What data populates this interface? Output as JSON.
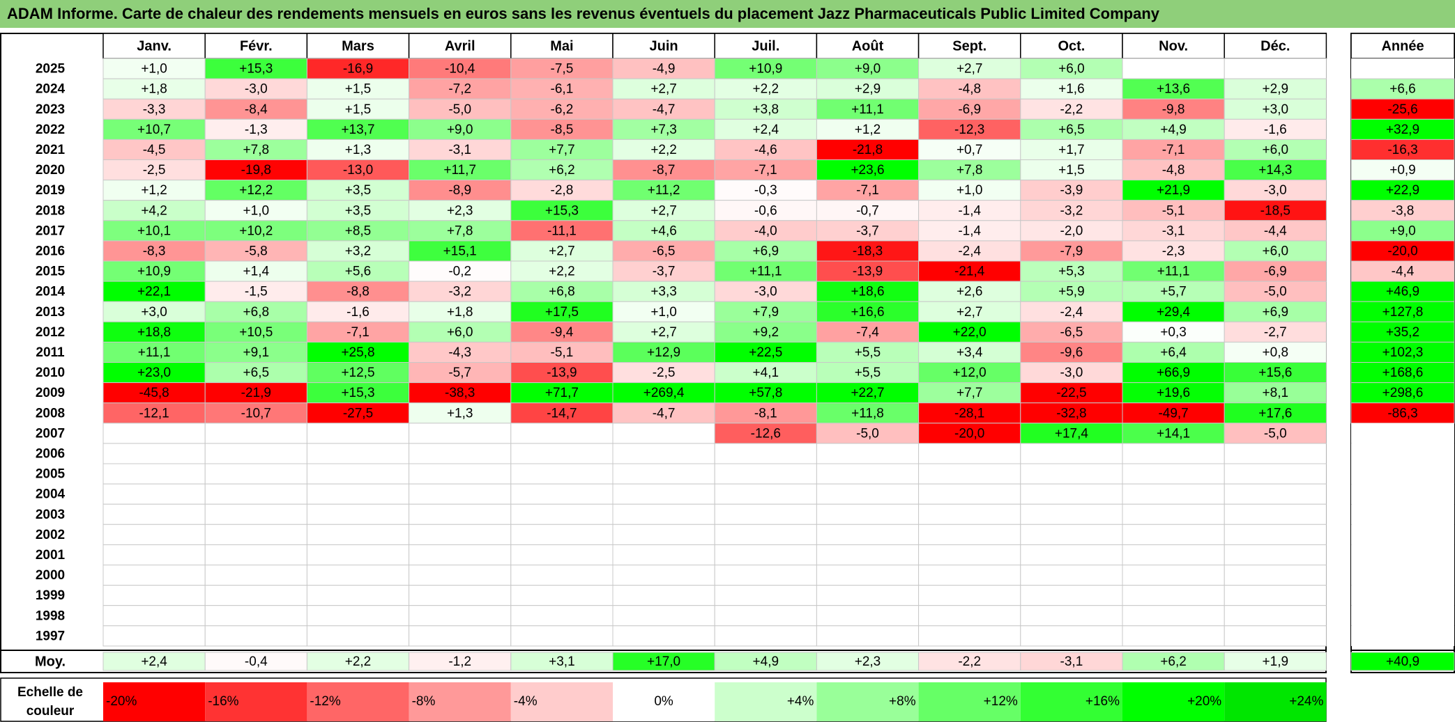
{
  "title": "ADAM Informe. Carte de chaleur des rendements mensuels en euros sans les revenus éventuels du placement Jazz Pharmaceuticals Public Limited Company",
  "chart_data": {
    "type": "heatmap",
    "title": "ADAM Informe. Carte de chaleur des rendements mensuels en euros sans les revenus éventuels du placement Jazz Pharmaceuticals Public Limited Company",
    "months": [
      "Janv.",
      "Févr.",
      "Mars",
      "Avril",
      "Mai",
      "Juin",
      "Juil.",
      "Août",
      "Sept.",
      "Oct.",
      "Nov.",
      "Déc."
    ],
    "year_header": "Année",
    "average_label": "Moy.",
    "rows": [
      {
        "year": "2025",
        "values": [
          "+1,0",
          "+15,3",
          "-16,9",
          "-10,4",
          "-7,5",
          "-4,9",
          "+10,9",
          "+9,0",
          "+2,7",
          "+6,0",
          "",
          ""
        ],
        "annual": ""
      },
      {
        "year": "2024",
        "values": [
          "+1,8",
          "-3,0",
          "+1,5",
          "-7,2",
          "-6,1",
          "+2,7",
          "+2,2",
          "+2,9",
          "-4,8",
          "+1,6",
          "+13,6",
          "+2,9"
        ],
        "annual": "+6,6"
      },
      {
        "year": "2023",
        "values": [
          "-3,3",
          "-8,4",
          "+1,5",
          "-5,0",
          "-6,2",
          "-4,7",
          "+3,8",
          "+11,1",
          "-6,9",
          "-2,2",
          "-9,8",
          "+3,0"
        ],
        "annual": "-25,6"
      },
      {
        "year": "2022",
        "values": [
          "+10,7",
          "-1,3",
          "+13,7",
          "+9,0",
          "-8,5",
          "+7,3",
          "+2,4",
          "+1,2",
          "-12,3",
          "+6,5",
          "+4,9",
          "-1,6"
        ],
        "annual": "+32,9"
      },
      {
        "year": "2021",
        "values": [
          "-4,5",
          "+7,8",
          "+1,3",
          "-3,1",
          "+7,7",
          "+2,2",
          "-4,6",
          "-21,8",
          "+0,7",
          "+1,7",
          "-7,1",
          "+6,0"
        ],
        "annual": "-16,3"
      },
      {
        "year": "2020",
        "values": [
          "-2,5",
          "-19,8",
          "-13,0",
          "+11,7",
          "+6,2",
          "-8,7",
          "-7,1",
          "+23,6",
          "+7,8",
          "+1,5",
          "-4,8",
          "+14,3"
        ],
        "annual": "+0,9"
      },
      {
        "year": "2019",
        "values": [
          "+1,2",
          "+12,2",
          "+3,5",
          "-8,9",
          "-2,8",
          "+11,2",
          "-0,3",
          "-7,1",
          "+1,0",
          "-3,9",
          "+21,9",
          "-3,0"
        ],
        "annual": "+22,9"
      },
      {
        "year": "2018",
        "values": [
          "+4,2",
          "+1,0",
          "+3,5",
          "+2,3",
          "+15,3",
          "+2,7",
          "-0,6",
          "-0,7",
          "-1,4",
          "-3,2",
          "-5,1",
          "-18,5"
        ],
        "annual": "-3,8"
      },
      {
        "year": "2017",
        "values": [
          "+10,1",
          "+10,2",
          "+8,5",
          "+7,8",
          "-11,1",
          "+4,6",
          "-4,0",
          "-3,7",
          "-1,4",
          "-2,0",
          "-3,1",
          "-4,4"
        ],
        "annual": "+9,0"
      },
      {
        "year": "2016",
        "values": [
          "-8,3",
          "-5,8",
          "+3,2",
          "+15,1",
          "+2,7",
          "-6,5",
          "+6,9",
          "-18,3",
          "-2,4",
          "-7,9",
          "-2,3",
          "+6,0"
        ],
        "annual": "-20,0"
      },
      {
        "year": "2015",
        "values": [
          "+10,9",
          "+1,4",
          "+5,6",
          "-0,2",
          "+2,2",
          "-3,7",
          "+11,1",
          "-13,9",
          "-21,4",
          "+5,3",
          "+11,1",
          "-6,9"
        ],
        "annual": "-4,4"
      },
      {
        "year": "2014",
        "values": [
          "+22,1",
          "-1,5",
          "-8,8",
          "-3,2",
          "+6,8",
          "+3,3",
          "-3,0",
          "+18,6",
          "+2,6",
          "+5,9",
          "+5,7",
          "-5,0"
        ],
        "annual": "+46,9"
      },
      {
        "year": "2013",
        "values": [
          "+3,0",
          "+6,8",
          "-1,6",
          "+1,8",
          "+17,5",
          "+1,0",
          "+7,9",
          "+16,6",
          "+2,7",
          "-2,4",
          "+29,4",
          "+6,9"
        ],
        "annual": "+127,8"
      },
      {
        "year": "2012",
        "values": [
          "+18,8",
          "+10,5",
          "-7,1",
          "+6,0",
          "-9,4",
          "+2,7",
          "+9,2",
          "-7,4",
          "+22,0",
          "-6,5",
          "+0,3",
          "-2,7"
        ],
        "annual": "+35,2"
      },
      {
        "year": "2011",
        "values": [
          "+11,1",
          "+9,1",
          "+25,8",
          "-4,3",
          "-5,1",
          "+12,9",
          "+22,5",
          "+5,5",
          "+3,4",
          "-9,6",
          "+6,4",
          "+0,8"
        ],
        "annual": "+102,3"
      },
      {
        "year": "2010",
        "values": [
          "+23,0",
          "+6,5",
          "+12,5",
          "-5,7",
          "-13,9",
          "-2,5",
          "+4,1",
          "+5,5",
          "+12,0",
          "-3,0",
          "+66,9",
          "+15,6"
        ],
        "annual": "+168,6"
      },
      {
        "year": "2009",
        "values": [
          "-45,8",
          "-21,9",
          "+15,3",
          "-38,3",
          "+71,7",
          "+269,4",
          "+57,8",
          "+22,7",
          "+7,7",
          "-22,5",
          "+19,6",
          "+8,1"
        ],
        "annual": "+298,6"
      },
      {
        "year": "2008",
        "values": [
          "-12,1",
          "-10,7",
          "-27,5",
          "+1,3",
          "-14,7",
          "-4,7",
          "-8,1",
          "+11,8",
          "-28,1",
          "-32,8",
          "-49,7",
          "+17,6"
        ],
        "annual": "-86,3"
      },
      {
        "year": "2007",
        "values": [
          "",
          "",
          "",
          "",
          "",
          "",
          "-12,6",
          "-5,0",
          "-20,0",
          "+17,4",
          "+14,1",
          "-5,0"
        ],
        "annual": ""
      },
      {
        "year": "2006",
        "values": [
          "",
          "",
          "",
          "",
          "",
          "",
          "",
          "",
          "",
          "",
          "",
          ""
        ],
        "annual": ""
      },
      {
        "year": "2005",
        "values": [
          "",
          "",
          "",
          "",
          "",
          "",
          "",
          "",
          "",
          "",
          "",
          ""
        ],
        "annual": ""
      },
      {
        "year": "2004",
        "values": [
          "",
          "",
          "",
          "",
          "",
          "",
          "",
          "",
          "",
          "",
          "",
          ""
        ],
        "annual": ""
      },
      {
        "year": "2003",
        "values": [
          "",
          "",
          "",
          "",
          "",
          "",
          "",
          "",
          "",
          "",
          "",
          ""
        ],
        "annual": ""
      },
      {
        "year": "2002",
        "values": [
          "",
          "",
          "",
          "",
          "",
          "",
          "",
          "",
          "",
          "",
          "",
          ""
        ],
        "annual": ""
      },
      {
        "year": "2001",
        "values": [
          "",
          "",
          "",
          "",
          "",
          "",
          "",
          "",
          "",
          "",
          "",
          ""
        ],
        "annual": ""
      },
      {
        "year": "2000",
        "values": [
          "",
          "",
          "",
          "",
          "",
          "",
          "",
          "",
          "",
          "",
          "",
          ""
        ],
        "annual": ""
      },
      {
        "year": "1999",
        "values": [
          "",
          "",
          "",
          "",
          "",
          "",
          "",
          "",
          "",
          "",
          "",
          ""
        ],
        "annual": ""
      },
      {
        "year": "1998",
        "values": [
          "",
          "",
          "",
          "",
          "",
          "",
          "",
          "",
          "",
          "",
          "",
          ""
        ],
        "annual": ""
      },
      {
        "year": "1997",
        "values": [
          "",
          "",
          "",
          "",
          "",
          "",
          "",
          "",
          "",
          "",
          "",
          ""
        ],
        "annual": ""
      }
    ],
    "averages": [
      "+2,4",
      "-0,4",
      "+2,2",
      "-1,2",
      "+3,1",
      "+17,0",
      "+4,9",
      "+2,3",
      "-2,2",
      "-3,1",
      "+6,2",
      "+1,9"
    ],
    "average_annual": "+40,9",
    "scale_label": "Echelle de couleur",
    "scale": [
      {
        "label": "-20%",
        "color": "#ff0000"
      },
      {
        "label": "-16%",
        "color": "#ff3333"
      },
      {
        "label": "-12%",
        "color": "#ff6666"
      },
      {
        "label": "-8%",
        "color": "#ff9999"
      },
      {
        "label": "-4%",
        "color": "#ffcccc"
      },
      {
        "label": "0%",
        "color": "#ffffff"
      },
      {
        "label": "+4%",
        "color": "#ccffcc"
      },
      {
        "label": "+8%",
        "color": "#99ff99"
      },
      {
        "label": "+12%",
        "color": "#66ff66"
      },
      {
        "label": "+16%",
        "color": "#33ff33"
      },
      {
        "label": "+20%",
        "color": "#00ff00"
      },
      {
        "label": "+24%",
        "color": "#00e600"
      }
    ],
    "colors": {
      "negative_max": "#ff0000",
      "positive_max": "#00ff00",
      "title_bar": "#8fcf7a"
    }
  }
}
